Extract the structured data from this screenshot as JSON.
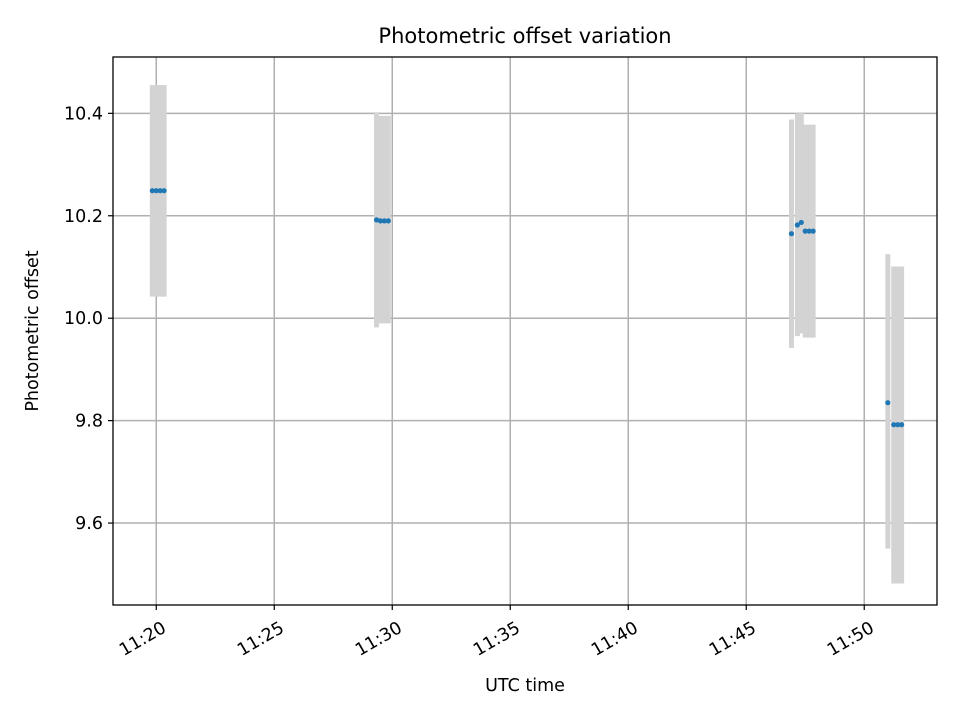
{
  "chart_data": {
    "type": "scatter",
    "title": "Photometric offset variation",
    "xlabel": "UTC time",
    "ylabel": "Photometric offset",
    "x_tick_labels": [
      "11:20",
      "11:25",
      "11:30",
      "11:35",
      "11:40",
      "11:45",
      "11:50"
    ],
    "y_tick_labels": [
      "9.6",
      "9.8",
      "10.0",
      "10.2",
      "10.4"
    ],
    "y_ticks": [
      9.6,
      9.8,
      10.0,
      10.2,
      10.4
    ],
    "xlim": [
      "11:18:10",
      "11:53:05"
    ],
    "ylim": [
      9.44,
      10.51
    ],
    "grid": true,
    "series": [
      {
        "marker_color": "#1f77b4",
        "errorbar_color": "#d3d3d3",
        "points": [
          {
            "x": "11:19:50",
            "y": 10.249,
            "ylow": 10.042,
            "yhigh": 10.455
          },
          {
            "x": "11:20:00",
            "y": 10.249,
            "ylow": 10.042,
            "yhigh": 10.455
          },
          {
            "x": "11:20:10",
            "y": 10.249,
            "ylow": 10.042,
            "yhigh": 10.455
          },
          {
            "x": "11:20:20",
            "y": 10.249,
            "ylow": 10.042,
            "yhigh": 10.455
          },
          {
            "x": "11:29:20",
            "y": 10.192,
            "ylow": 9.982,
            "yhigh": 10.402
          },
          {
            "x": "11:29:30",
            "y": 10.19,
            "ylow": 9.99,
            "yhigh": 10.395
          },
          {
            "x": "11:29:40",
            "y": 10.19,
            "ylow": 9.99,
            "yhigh": 10.395
          },
          {
            "x": "11:29:50",
            "y": 10.19,
            "ylow": 9.99,
            "yhigh": 10.395
          },
          {
            "x": "11:46:55",
            "y": 10.165,
            "ylow": 9.942,
            "yhigh": 10.388
          },
          {
            "x": "11:47:10",
            "y": 10.182,
            "ylow": 9.965,
            "yhigh": 10.4
          },
          {
            "x": "11:47:20",
            "y": 10.187,
            "ylow": 9.97,
            "yhigh": 10.402
          },
          {
            "x": "11:47:30",
            "y": 10.17,
            "ylow": 9.962,
            "yhigh": 10.378
          },
          {
            "x": "11:47:40",
            "y": 10.17,
            "ylow": 9.962,
            "yhigh": 10.378
          },
          {
            "x": "11:47:50",
            "y": 10.17,
            "ylow": 9.962,
            "yhigh": 10.378
          },
          {
            "x": "11:51:00",
            "y": 9.835,
            "ylow": 9.55,
            "yhigh": 10.125
          },
          {
            "x": "11:51:15",
            "y": 9.792,
            "ylow": 9.482,
            "yhigh": 10.101
          },
          {
            "x": "11:51:25",
            "y": 9.792,
            "ylow": 9.482,
            "yhigh": 10.101
          },
          {
            "x": "11:51:35",
            "y": 9.792,
            "ylow": 9.482,
            "yhigh": 10.101
          }
        ]
      }
    ]
  }
}
